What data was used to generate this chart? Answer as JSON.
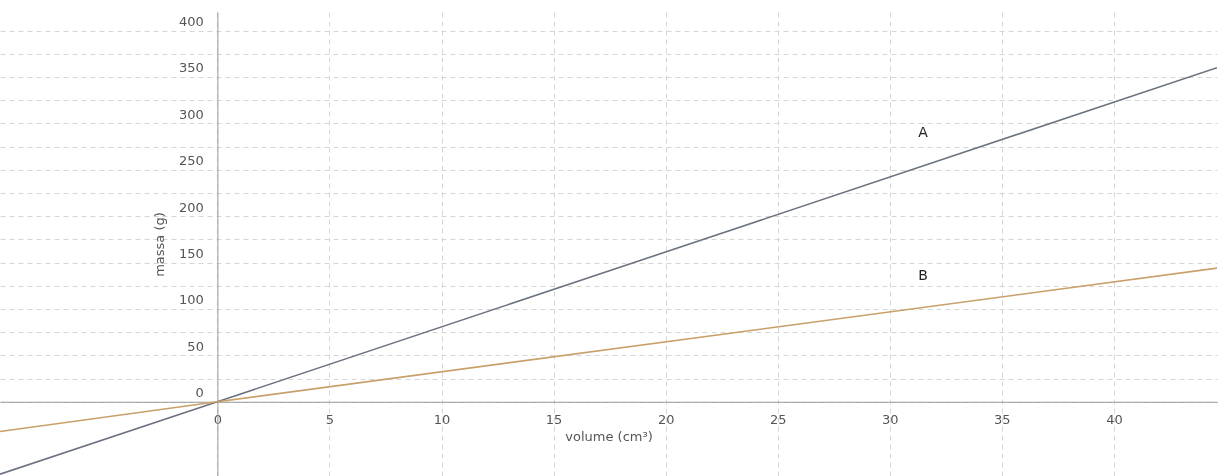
{
  "chart_data": {
    "type": "line",
    "xlabel": "volume (cm³)",
    "ylabel": "massa (g)",
    "xlim": [
      -9.7,
      44.6
    ],
    "ylim": [
      -80,
      420
    ],
    "xticks": [
      0,
      5,
      10,
      15,
      20,
      25,
      30,
      35,
      40
    ],
    "yticks": [
      0,
      {
        "value": 25,
        "label": null
      },
      50,
      {
        "value": 75,
        "label": null
      },
      100,
      {
        "value": 125,
        "label": null
      },
      150,
      {
        "value": 175,
        "label": null
      },
      200,
      {
        "value": 225,
        "label": null
      },
      250,
      {
        "value": 275,
        "label": null
      },
      300,
      {
        "value": 325,
        "label": null
      },
      350,
      {
        "value": 375,
        "label": null
      },
      400
    ],
    "grid": true,
    "line_style": "solid",
    "series": [
      {
        "name": "A",
        "color": "#6b7380",
        "x": [
          -9.7,
          0,
          44.6
        ],
        "values": [
          -78,
          0,
          360
        ]
      },
      {
        "name": "B",
        "color": "#c9a06a",
        "x": [
          -9.7,
          0,
          44.6
        ],
        "values": [
          -32,
          0,
          144
        ]
      }
    ]
  }
}
